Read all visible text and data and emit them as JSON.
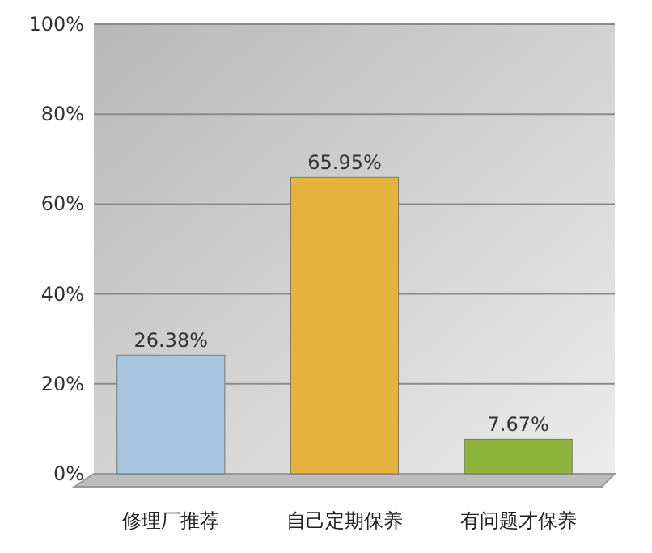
{
  "chart_data": {
    "type": "bar",
    "categories": [
      "修理厂推荐",
      "自己定期保养",
      "有问题才保养"
    ],
    "values": [
      26.38,
      65.95,
      7.67
    ],
    "colors": [
      "#a8c6e0",
      "#e5b23e",
      "#8db53c"
    ],
    "value_labels": [
      "26.38%",
      "65.95%",
      "7.67%"
    ],
    "ylim": [
      0,
      100
    ],
    "yticks": [
      {
        "value": 0,
        "label": "0%"
      },
      {
        "value": 20,
        "label": "20%"
      },
      {
        "value": 40,
        "label": "40%"
      },
      {
        "value": 60,
        "label": "60%"
      },
      {
        "value": 80,
        "label": "80%"
      },
      {
        "value": 100,
        "label": "100%"
      }
    ],
    "grid": "y"
  }
}
